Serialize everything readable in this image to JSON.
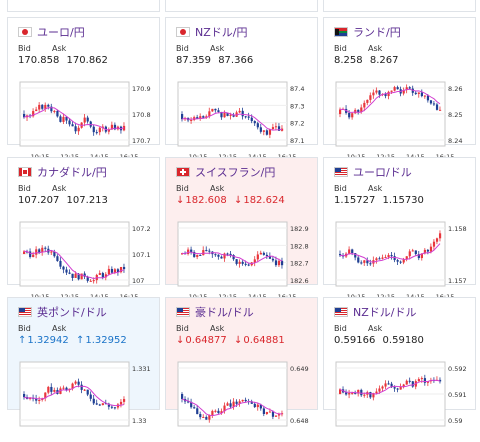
{
  "cards": [
    {
      "name": "ユーロ/円",
      "flag": "jp",
      "bid_label": "Bid",
      "ask_label": "Ask",
      "bid": "170.858",
      "ask": "170.862",
      "trend": "none",
      "y_ticks": [
        "170.9",
        "170.8",
        "170.7"
      ],
      "x_ticks": [
        "10:15",
        "12:15",
        "14:15",
        "16:15"
      ]
    },
    {
      "name": "NZドル/円",
      "flag": "jp",
      "bid_label": "Bid",
      "ask_label": "Ask",
      "bid": "87.359",
      "ask": "87.366",
      "trend": "none",
      "y_ticks": [
        "87.4",
        "87.3",
        "87.2",
        "87.1"
      ],
      "x_ticks": [
        "10:15",
        "12:15",
        "14:15",
        "16:15"
      ]
    },
    {
      "name": "ランド/円",
      "flag": "za",
      "bid_label": "Bid",
      "ask_label": "Ask",
      "bid": "8.258",
      "ask": "8.267",
      "trend": "none",
      "y_ticks": [
        "8.26",
        "8.25",
        "8.24"
      ],
      "x_ticks": [
        "10:15",
        "12:15",
        "14:15",
        "16:15"
      ]
    },
    {
      "name": "カナダドル/円",
      "flag": "ca",
      "bid_label": "Bid",
      "ask_label": "Ask",
      "bid": "107.207",
      "ask": "107.213",
      "trend": "none",
      "y_ticks": [
        "107.2",
        "107.1",
        "107"
      ],
      "x_ticks": [
        "10:15",
        "12:15",
        "14:15",
        "16:15"
      ]
    },
    {
      "name": "スイスフラン/円",
      "flag": "ch",
      "bid_label": "Bid",
      "ask_label": "Ask",
      "bid": "182.608",
      "ask": "182.624",
      "trend": "down",
      "arrow": "↓",
      "y_ticks": [
        "182.9",
        "182.8",
        "182.7",
        "182.6"
      ],
      "x_ticks": [
        "10:15",
        "12:15",
        "14:15",
        "16:15"
      ]
    },
    {
      "name": "ユーロ/ドル",
      "flag": "us",
      "bid_label": "Bid",
      "ask_label": "Ask",
      "bid": "1.15727",
      "ask": "1.15730",
      "trend": "none",
      "y_ticks": [
        "1.158",
        "1.157"
      ],
      "x_ticks": [
        "10:15",
        "12:15",
        "14:15",
        "16:15"
      ]
    },
    {
      "name": "英ポンド/ドル",
      "flag": "us",
      "bid_label": "Bid",
      "ask_label": "Ask",
      "bid": "1.32942",
      "ask": "1.32952",
      "trend": "up",
      "arrow": "↑",
      "y_ticks": [
        "1.331",
        "1.33"
      ],
      "x_ticks": []
    },
    {
      "name": "豪ドル/ドル",
      "flag": "us",
      "bid_label": "Bid",
      "ask_label": "Ask",
      "bid": "0.64877",
      "ask": "0.64881",
      "trend": "down",
      "arrow": "↓",
      "y_ticks": [
        "0.649",
        "0.648"
      ],
      "x_ticks": []
    },
    {
      "name": "NZドル/ドル",
      "flag": "us",
      "bid_label": "Bid",
      "ask_label": "Ask",
      "bid": "0.59166",
      "ask": "0.59180",
      "trend": "none",
      "y_ticks": [
        "0.592",
        "0.591",
        "0.59"
      ],
      "x_ticks": []
    }
  ],
  "colors": {
    "title": "#5b2d91",
    "up_candle": "#e8363c",
    "down_candle": "#1f3f93",
    "ma_line": "#d23fd1",
    "ma_line2": "#6fb6e8",
    "down_text": "#d9262c",
    "up_text": "#1a73c8"
  }
}
